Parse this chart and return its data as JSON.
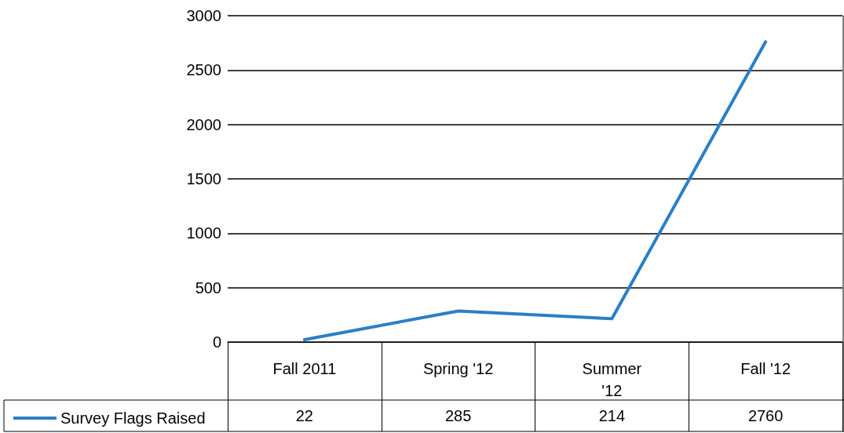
{
  "chart_data": {
    "type": "line",
    "categories": [
      "Fall 2011",
      "Spring '12",
      "Summer\n'12",
      "Fall '12"
    ],
    "series": [
      {
        "name": "Survey Flags Raised",
        "color": "#2a7fc6",
        "values": [
          22,
          285,
          214,
          2760
        ]
      }
    ],
    "ylim": [
      0,
      3000
    ],
    "yticks": [
      0,
      500,
      1000,
      1500,
      2000,
      2500,
      3000
    ],
    "grid": "y",
    "legend": "bottom left",
    "data_labels": true,
    "marker": "none",
    "line_style": "solid"
  }
}
